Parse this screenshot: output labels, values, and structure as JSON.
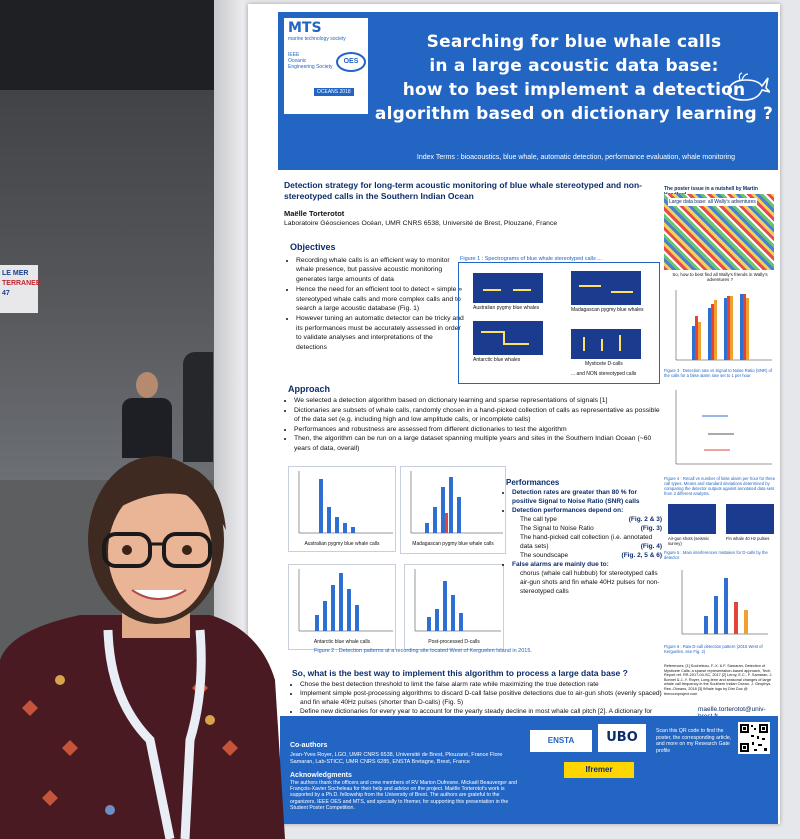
{
  "hall": {
    "sign_line1": "LE MER",
    "sign_line2": "TERRANEE",
    "sign_number": "47"
  },
  "poster": {
    "logos": {
      "mts": "MTS",
      "mts_sub": "marine technology society",
      "ieee_line1": "IEEE",
      "ieee_line2": "Oceanic",
      "ieee_line3": "Engineering Society",
      "oes": "OES",
      "oceans": "OCEANS 2018"
    },
    "title_line1": "Searching for blue whale calls",
    "title_line2": "in a large acoustic data base:",
    "title_line3": "how to best implement a detection",
    "title_line4": "algorithm based on dictionary learning ?",
    "index_terms": "Index Terms : bioacoustics, blue whale, automatic detection, performance evaluation, whale monitoring",
    "abstract_title": "Detection strategy for long-term acoustic monitoring of blue whale stereotyped and non-stereotyped calls in the Southern Indian Ocean",
    "author": "Maëlle Torterotot",
    "affiliation": "Laboratoire Géosciences Océan, UMR CNRS 6538, Université de Brest, Plouzané, France",
    "objectives_heading": "Objectives",
    "objectives": [
      "Recording whale calls is an efficient way to monitor whale presence, but passive acoustic monitoring generates large amounts of data",
      "Hence the need for an efficient tool to detect « simple » stereotyped whale calls and more complex calls and to search a large acoustic database (Fig. 1)",
      "However tuning an automatic detector can be tricky and its performances must be accurately assessed in order to validate analyses and interpretations of the detections"
    ],
    "fig1_caption": "Figure 1 : Spectrograms of blue whale stereotyped calls ...",
    "fig1_labels": [
      "Australian pygmy blue whales",
      "Madagascan pygmy blue whales",
      "Antarctic blue whales",
      "Mysticete D-calls",
      "... and NON stereotyped calls"
    ],
    "approach_heading": "Approach",
    "approach": [
      "We selected a detection algorithm based on dictionary learning and sparse representations of signals [1]",
      "Dictionaries are subsets of whale calls, randomly chosen in a hand-picked collection of calls as representative as possible of the data set (e.g. including high and low amplitude calls, or incomplete calls)",
      "Performances and robustness are assessed from different dictionaries to test the algorithm",
      "Then, the algorithm can be run on a large dataset spanning multiple years and sites in the Southern Indian Ocean (~60 years of data, overall)"
    ],
    "chart_labels": [
      "Australian pygmy blue whale calls",
      "Madagascan pygmy blue whale calls",
      "Antarctic blue whale calls",
      "Post-processed D-calls"
    ],
    "fig2_caption": "Figure 2 : Detection patterns at a recording site located West of Kerguelen Island in 2015.",
    "performances_heading": "Performances",
    "perf_1": "Detection rates are greater than 80 % for positive Signal to Noise Ratio (SNR) calls",
    "perf_2": "Detection performances depend on:",
    "perf_sub": [
      {
        "text": "The call type",
        "ref": "(Fig. 2 & 3)"
      },
      {
        "text": "The Signal to Noise Ratio",
        "ref": "(Fig. 3)"
      },
      {
        "text": "The hand-picked call collection (i.e. annotated data sets)",
        "ref": "(Fig. 4)"
      },
      {
        "text": "The soundscape",
        "ref": "(Fig. 2, 5 & 6)"
      }
    ],
    "perf_3": "False alarms are mainly due to:",
    "perf_fa": [
      "chorus (whale call hubbub) for stereotyped calls",
      "air-gun shots and fin whale 40Hz pulses for non-stereotyped calls"
    ],
    "sowhat_heading": "So, what is the best way to implement this algorithm to process a large data base ?",
    "sowhat": [
      "Chose the best detection threshold to limit the false alarm rate while maximizing the true detection rate",
      "Implement simple post-processing algorithms to discard D-call false positive detections due to air-gun shots (evenly spaced) and fin whale 40Hz pulses (shorter than D-calls) (Fig. 5)",
      "Define new dictionaries for every year to account for the yearly steady decline in most whale call pitch [2]. A dictionary for year N can be used to detect calls in year N+1. Selected calls from year N+1 can then be used to build the new dictionaries, and so forth."
    ],
    "nutshell_title": "The poster issue in a nutshell by Martin Handford",
    "nutshell_label": "Large data base: all Wally's adventures",
    "nutshell_sub": "So, how to best find all Wally's friends in Wally's adventures ?",
    "fig3_caption": "Figure 3 : Detection rate vs Signal to Noise Ratio (SNR) of the calls for a false alarm rate set to 1 per hour",
    "fig4_caption": "Figure 4 : Recall vs number of false alarm per hour for three call types. Means and standard deviations determined by comparing the detector outputs against annotated data sets from 3 different analysts.",
    "fig5_labels": [
      "Air-gun shots (seismic survey)",
      "Fin whale 40 Hz pulses"
    ],
    "fig5_caption": "Figure 5 : Main interferences mistaken for D-calls by the detector",
    "fig6_caption": "Figure 6 : Raw D-call detection pattern (2015 West of Kerguelen, see Fig. 2)",
    "references": "References: [1] Socheleau, F.-X. & F. Samaran, Detection of Mysticete Calls: a sparse representation-based approach, Tech. Report ref. RR-2017-04-SC, 2017 [2] Leroy, E.C., F. Samaran, J. Bonnel & J.-Y. Royer, Long-term and seasonal changes of large whale call frequency in the Southern Indian Ocean, J. Geophys. Res.-Oceans, 2018 [3] Whale logo by Dim Duc @ thenounproject.com",
    "email": "maelle.torterotot@univ-brest.fr",
    "coauthors_heading": "Co-authors",
    "coauthors": "Jean-Yves Royer, LGO, UMR CNRS 6538, Université de Brest, Plouzané, France Flore Samaran, Lab-STICC, UMR CNRS 6285, ENSTA Bretagne, Brest, France",
    "ack_heading": "Acknowledgments",
    "ack": "The authors thank the officers and crew members of RV Marion Dufresne. Mickaël Beauverger and François-Xavier Socheleau for their help and advice on the project. Maëlle Torterotot's work is supported by a Ph.D. fellowship from the University of Brest. The authors are grateful to the organizers, IEEE OES and MTS, and specially to Ifremer, for supporting this presentation in the Student Poster Competition.",
    "ensta": "ENSTA Bretagne",
    "ubo": "UBO",
    "ifremer": "Ifremer",
    "qr_text": "Scan this QR code to find the poster, the corresponding article, and more on my Research Gate profile"
  }
}
